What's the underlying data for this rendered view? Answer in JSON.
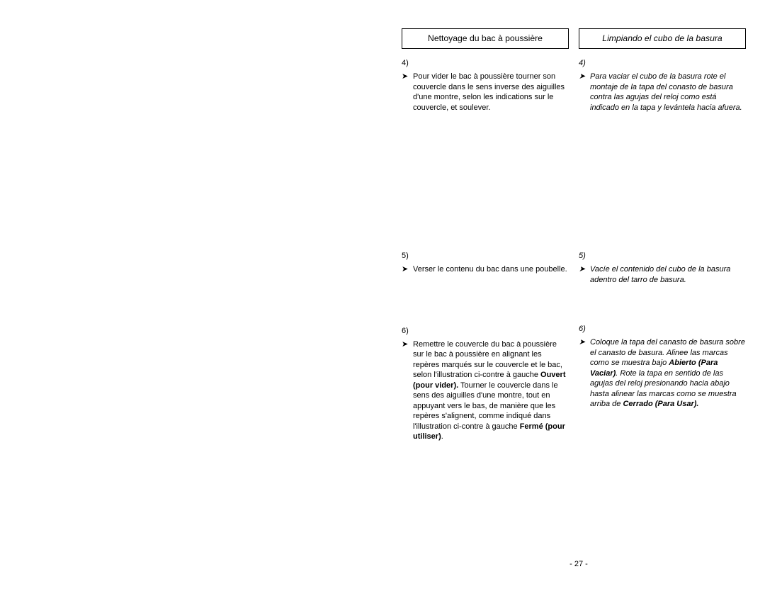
{
  "pageNumber": "- 27 -",
  "french": {
    "title": "Nettoyage du bac à poussière",
    "s4num": "4)",
    "s4text": "Pour vider le bac à poussière tourner son couvercle dans le sens inverse des aiguilles d'une montre, selon les indications sur le couvercle, et soulever.",
    "s5num": "5)",
    "s5text": "Verser le contenu du bac dans une poubelle.",
    "s6num": "6)",
    "s6a": "Remettre le couvercle du bac à poussière sur le bac à poussière en alignant les repères marqués sur le couvercle et le bac, selon l'illustration ci-contre à gauche ",
    "s6b": "Ouvert (pour vider).",
    "s6c": " Tourner le couvercle dans le sens des aiguilles d'une montre, tout en appuyant vers le bas, de manière que les repères s'alignent, comme indiqué dans l'illustration ci-contre à gauche ",
    "s6d": "Fermé (pour utiliser)",
    "s6e": "."
  },
  "spanish": {
    "title": "Limpiando el cubo de la basura",
    "s4num": "4)",
    "s4text": "Para vaciar el cubo de la basura rote el montaje de la tapa del conasto de basura contra las agujas del reloj como está indicado en la tapa y levántela hacia afuera.",
    "s5num": "5)",
    "s5text": "Vacíe el contenido del cubo de la basura adentro del tarro de basura.",
    "s6num": "6)",
    "s6a": "Coloque la tapa del canasto de basura sobre el canasto de basura. Alinee las marcas como se muestra bajo ",
    "s6b": "Abierto (Para Vaciar)",
    "s6c": ". Rote la tapa en sentido de las agujas del reloj presionando hacia abajo hasta alinear las marcas como se muestra arriba de ",
    "s6d": "Cerrado (Para Usar).",
    "s6e": ""
  }
}
